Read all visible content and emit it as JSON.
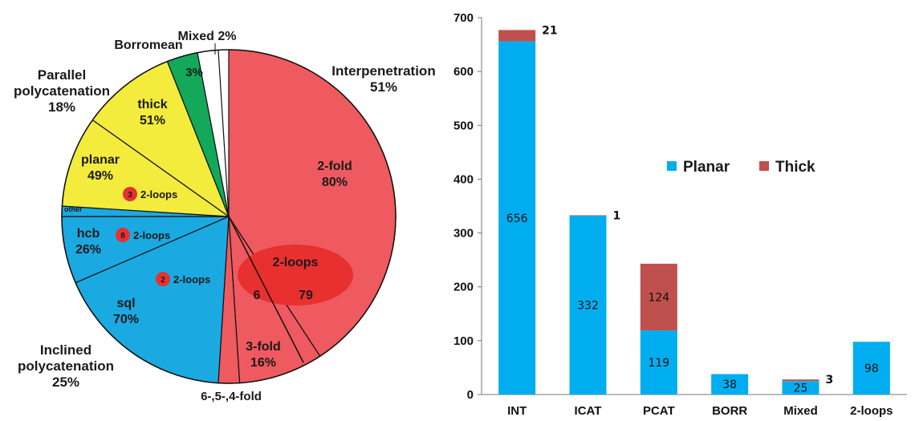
{
  "colors": {
    "interpenetration": "#EE5A5F",
    "inclined": "#1BA9E1",
    "parallel": "#F3EC3D",
    "borromean": "#14A85A",
    "mixed": "#FFFFFF",
    "loop_region": "#E8302F",
    "loop_badge": "#E73131",
    "planar": "#00AEEF",
    "thick": "#C0504D"
  },
  "pie": {
    "group_labels": {
      "interpenetration": [
        "Interpenetration",
        "51%"
      ],
      "parallel": [
        "Parallel",
        "polycatenation",
        "18%"
      ],
      "inclined": [
        "Inclined",
        "polycatenation",
        "25%"
      ],
      "borromean": "Borromean",
      "mixed": "Mixed 2%"
    },
    "slice_labels": {
      "twofold": [
        "2-fold",
        "80%"
      ],
      "threefold": [
        "3-fold",
        "16%"
      ],
      "higher": "6-,5-,4-fold",
      "sql": [
        "sql",
        "70%"
      ],
      "hcb": [
        "hcb",
        "26%"
      ],
      "other": "other",
      "planar": [
        "planar",
        "49%"
      ],
      "thick": [
        "thick",
        "51%"
      ],
      "borr_pct": "3%"
    },
    "loops_region": {
      "title": "2-loops",
      "left": "6",
      "right": "79"
    },
    "badges": [
      {
        "key": "planar",
        "count": "3",
        "label": "2-loops"
      },
      {
        "key": "hcb",
        "count": "8",
        "label": "2-loops"
      },
      {
        "key": "sql",
        "count": "2",
        "label": "2-loops"
      }
    ]
  },
  "chart_data": [
    {
      "type": "pie",
      "slices": [
        {
          "name": "Interpenetration",
          "percent": 51,
          "sub": [
            {
              "name": "2-fold",
              "percent": 80
            },
            {
              "name": "3-fold",
              "percent": 16
            },
            {
              "name": "6-,5-,4-fold",
              "percent": 4
            }
          ]
        },
        {
          "name": "Inclined polycatenation",
          "percent": 25,
          "sub": [
            {
              "name": "sql",
              "percent": 70
            },
            {
              "name": "hcb",
              "percent": 26
            },
            {
              "name": "other",
              "percent": 4
            }
          ]
        },
        {
          "name": "Parallel polycatenation",
          "percent": 18,
          "sub": [
            {
              "name": "planar",
              "percent": 49
            },
            {
              "name": "thick",
              "percent": 51
            }
          ]
        },
        {
          "name": "Borromean",
          "percent": 3
        },
        {
          "name": "Mixed",
          "percent": 2
        }
      ]
    },
    {
      "type": "bar",
      "stacked": true,
      "categories": [
        "INT",
        "ICAT",
        "PCAT",
        "BORR",
        "Mixed",
        "2-loops"
      ],
      "series": [
        {
          "name": "Planar",
          "values": [
            656,
            332,
            119,
            38,
            25,
            98
          ]
        },
        {
          "name": "Thick",
          "values": [
            21,
            1,
            124,
            0,
            3,
            0
          ]
        }
      ],
      "data_labels": {
        "Planar": [
          "656",
          "332",
          "119",
          "38",
          "25",
          "98"
        ],
        "Thick": [
          "21",
          "1",
          "124",
          "",
          "3",
          ""
        ]
      },
      "ylim": [
        0,
        700
      ],
      "yticks": [
        0,
        100,
        200,
        300,
        400,
        500,
        600,
        700
      ],
      "legend": "center"
    }
  ]
}
